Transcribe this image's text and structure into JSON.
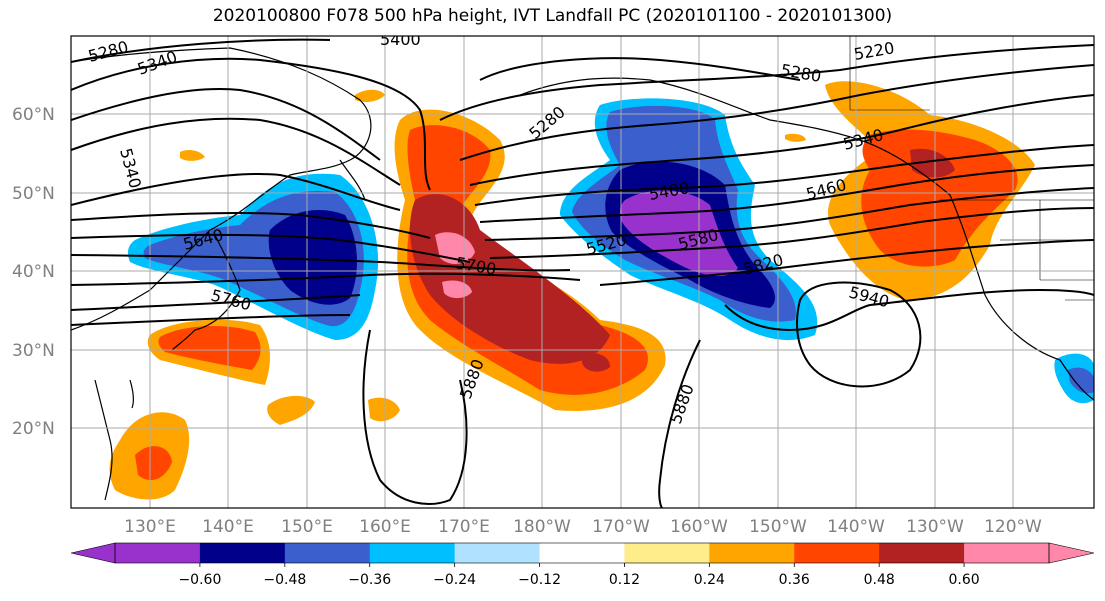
{
  "title": "2020100800 F078 500 hPa height, IVT Landfall PC (2020101100 - 2020101300)",
  "lon_ticks": [
    "130°E",
    "140°E",
    "150°E",
    "160°E",
    "170°E",
    "180°W",
    "170°W",
    "160°W",
    "150°W",
    "140°W",
    "130°W",
    "120°W"
  ],
  "lat_ticks": [
    "60°N",
    "50°N",
    "40°N",
    "30°N",
    "20°N"
  ],
  "contour_labels": [
    "5280",
    "5340",
    "5400",
    "5220",
    "5280",
    "5340",
    "5460",
    "5340",
    "5640",
    "5700",
    "5760",
    "5280",
    "5400",
    "5520",
    "5580",
    "5820",
    "5940",
    "5880",
    "5880"
  ],
  "colorbar": {
    "colors": [
      "#9932cc",
      "#00008b",
      "#3b5fcd",
      "#00bfff",
      "#b0e2ff",
      "#ffffff",
      "#ffec8b",
      "#ffa500",
      "#ff4500",
      "#b22222",
      "#ff88aa"
    ],
    "extend_min_color": "#9932cc",
    "extend_max_color": "#ff88aa",
    "tick_labels": [
      "−0.60",
      "−0.48",
      "−0.36",
      "−0.24",
      "−0.12",
      "0.12",
      "0.24",
      "0.36",
      "0.48",
      "0.60"
    ]
  },
  "colors": {
    "c_purple": "#9932cc",
    "c_navy": "#00008b",
    "c_blue": "#3b5fcd",
    "c_cyan": "#00bfff",
    "c_lightblue": "#b0e2ff",
    "c_yellow": "#ffec8b",
    "c_orange": "#ffa500",
    "c_red": "#ff4500",
    "c_darkred": "#b22222",
    "c_pink": "#ff88aa"
  }
}
